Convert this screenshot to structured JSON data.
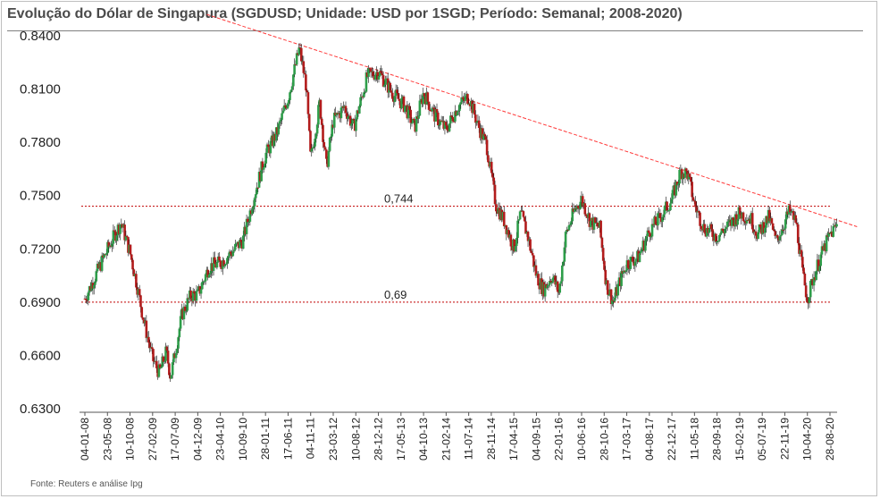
{
  "title": "Evolução do Dólar de Singapura (SGDUSD; Unidade: USD por 1SGD; Período: Semanal; 2008-2020)",
  "source": "Fonte: Reuters e análise Ipg",
  "colors": {
    "up": "#2e9e4a",
    "down": "#b21c1c",
    "trendline": "#ff3b3b",
    "level_line": "#c00000"
  },
  "chart_data": {
    "type": "candlestick",
    "ylim": [
      0.63,
      0.84
    ],
    "y_ticks": [
      "0.6300",
      "0.6600",
      "0.6900",
      "0.7200",
      "0.7500",
      "0.7800",
      "0.8100",
      "0.8400"
    ],
    "x_ticks": [
      "04-01-08",
      "23-05-08",
      "10-10-08",
      "27-02-09",
      "17-07-09",
      "04-12-09",
      "23-04-10",
      "10-09-10",
      "28-01-11",
      "17-06-11",
      "04-11-11",
      "23-03-12",
      "10-08-12",
      "28-12-12",
      "17-05-13",
      "04-10-13",
      "21-02-14",
      "11-07-14",
      "28-11-14",
      "17-04-15",
      "04-09-15",
      "22-01-16",
      "10-06-16",
      "28-10-16",
      "17-03-17",
      "04-08-17",
      "22-12-17",
      "11-05-18",
      "28-09-18",
      "15-02-19",
      "05-07-19",
      "22-11-19",
      "10-04-20",
      "28-08-20"
    ],
    "anchors": [
      {
        "x": 0,
        "y": 0.692
      },
      {
        "x": 1,
        "y": 0.7195
      },
      {
        "x": 1.6,
        "y": 0.735
      },
      {
        "x": 2.0,
        "y": 0.718
      },
      {
        "x": 2.3,
        "y": 0.7
      },
      {
        "x": 2.6,
        "y": 0.68
      },
      {
        "x": 3.0,
        "y": 0.658
      },
      {
        "x": 3.3,
        "y": 0.65
      },
      {
        "x": 3.6,
        "y": 0.662
      },
      {
        "x": 3.8,
        "y": 0.648
      },
      {
        "x": 4.3,
        "y": 0.683
      },
      {
        "x": 4.7,
        "y": 0.694
      },
      {
        "x": 5.0,
        "y": 0.694
      },
      {
        "x": 5.5,
        "y": 0.71
      },
      {
        "x": 6.0,
        "y": 0.712
      },
      {
        "x": 6.5,
        "y": 0.718
      },
      {
        "x": 7.0,
        "y": 0.725
      },
      {
        "x": 7.5,
        "y": 0.75
      },
      {
        "x": 8.0,
        "y": 0.773
      },
      {
        "x": 8.5,
        "y": 0.785
      },
      {
        "x": 9.0,
        "y": 0.805
      },
      {
        "x": 9.5,
        "y": 0.833
      },
      {
        "x": 9.8,
        "y": 0.812
      },
      {
        "x": 10.0,
        "y": 0.77
      },
      {
        "x": 10.4,
        "y": 0.802
      },
      {
        "x": 10.7,
        "y": 0.766
      },
      {
        "x": 11.0,
        "y": 0.792
      },
      {
        "x": 11.5,
        "y": 0.8
      },
      {
        "x": 11.9,
        "y": 0.788
      },
      {
        "x": 12.5,
        "y": 0.817
      },
      {
        "x": 13.0,
        "y": 0.82
      },
      {
        "x": 13.6,
        "y": 0.808
      },
      {
        "x": 14.2,
        "y": 0.8
      },
      {
        "x": 14.6,
        "y": 0.788
      },
      {
        "x": 15.0,
        "y": 0.808
      },
      {
        "x": 15.5,
        "y": 0.795
      },
      {
        "x": 16.0,
        "y": 0.787
      },
      {
        "x": 16.5,
        "y": 0.8
      },
      {
        "x": 17.0,
        "y": 0.806
      },
      {
        "x": 17.4,
        "y": 0.79
      },
      {
        "x": 17.8,
        "y": 0.778
      },
      {
        "x": 18.2,
        "y": 0.745
      },
      {
        "x": 18.6,
        "y": 0.735
      },
      {
        "x": 19.0,
        "y": 0.72
      },
      {
        "x": 19.3,
        "y": 0.74
      },
      {
        "x": 19.6,
        "y": 0.728
      },
      {
        "x": 20.0,
        "y": 0.705
      },
      {
        "x": 20.3,
        "y": 0.697
      },
      {
        "x": 20.7,
        "y": 0.705
      },
      {
        "x": 21.0,
        "y": 0.695
      },
      {
        "x": 21.3,
        "y": 0.728
      },
      {
        "x": 21.7,
        "y": 0.742
      },
      {
        "x": 22.0,
        "y": 0.748
      },
      {
        "x": 22.4,
        "y": 0.735
      },
      {
        "x": 22.8,
        "y": 0.732
      },
      {
        "x": 23.1,
        "y": 0.7
      },
      {
        "x": 23.4,
        "y": 0.69
      },
      {
        "x": 23.7,
        "y": 0.702
      },
      {
        "x": 24.0,
        "y": 0.712
      },
      {
        "x": 24.5,
        "y": 0.715
      },
      {
        "x": 25.0,
        "y": 0.73
      },
      {
        "x": 25.5,
        "y": 0.738
      },
      {
        "x": 26.0,
        "y": 0.748
      },
      {
        "x": 26.4,
        "y": 0.764
      },
      {
        "x": 26.7,
        "y": 0.762
      },
      {
        "x": 27.0,
        "y": 0.745
      },
      {
        "x": 27.4,
        "y": 0.732
      },
      {
        "x": 28.0,
        "y": 0.727
      },
      {
        "x": 28.5,
        "y": 0.733
      },
      {
        "x": 29.0,
        "y": 0.74
      },
      {
        "x": 29.5,
        "y": 0.737
      },
      {
        "x": 29.8,
        "y": 0.728
      },
      {
        "x": 30.3,
        "y": 0.738
      },
      {
        "x": 30.6,
        "y": 0.724
      },
      {
        "x": 31.2,
        "y": 0.741
      },
      {
        "x": 31.5,
        "y": 0.735
      },
      {
        "x": 31.8,
        "y": 0.705
      },
      {
        "x": 32.0,
        "y": 0.692
      },
      {
        "x": 32.3,
        "y": 0.705
      },
      {
        "x": 32.6,
        "y": 0.716
      },
      {
        "x": 33.0,
        "y": 0.728
      },
      {
        "x": 33.3,
        "y": 0.733
      }
    ],
    "levels": [
      {
        "value": 0.744,
        "label": "0,744"
      },
      {
        "value": 0.69,
        "label": "0,69"
      }
    ],
    "trendline": {
      "from": {
        "x": 5.4,
        "y": 0.852
      },
      "to": {
        "x": 34.2,
        "y": 0.7325
      }
    }
  }
}
